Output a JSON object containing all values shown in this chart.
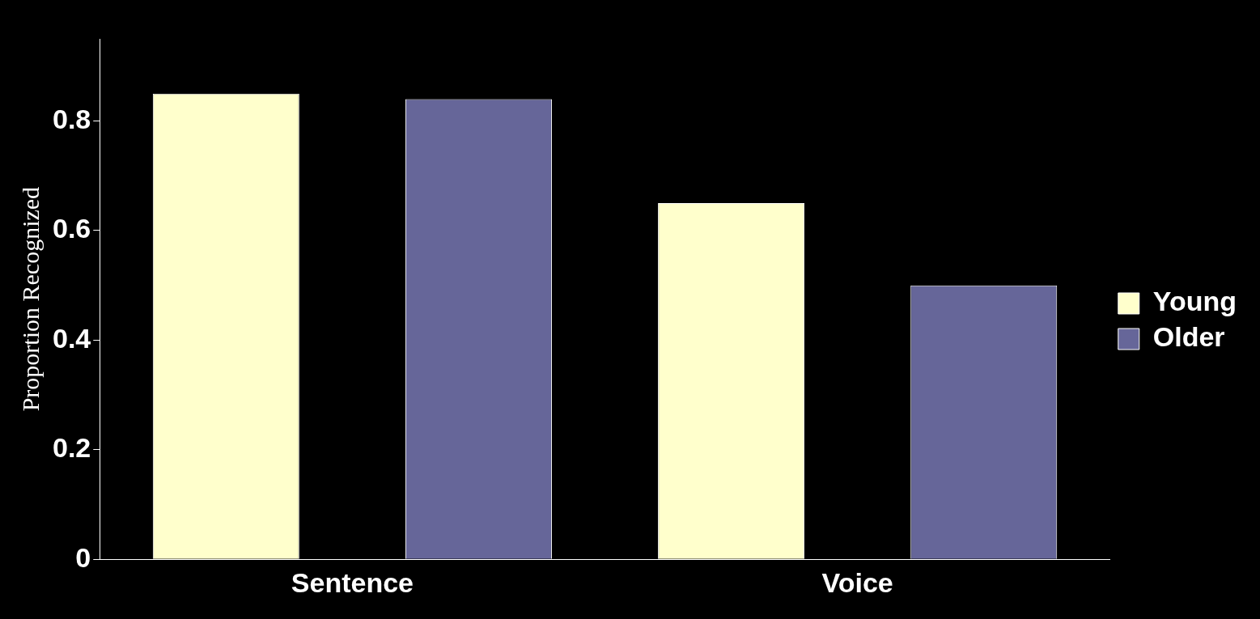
{
  "chart_data": {
    "type": "bar",
    "ylabel": "Proportion Recognized",
    "categories": [
      "Sentence",
      "Voice"
    ],
    "series": [
      {
        "name": "Young",
        "color": "#ffffcc",
        "values": [
          0.85,
          0.65
        ]
      },
      {
        "name": "Older",
        "color": "#666699",
        "values": [
          0.84,
          0.5
        ]
      }
    ],
    "ylim": [
      0,
      0.95
    ],
    "yticks": [
      0,
      0.2,
      0.4,
      0.6,
      0.8
    ],
    "grid": false,
    "legend": "right"
  }
}
